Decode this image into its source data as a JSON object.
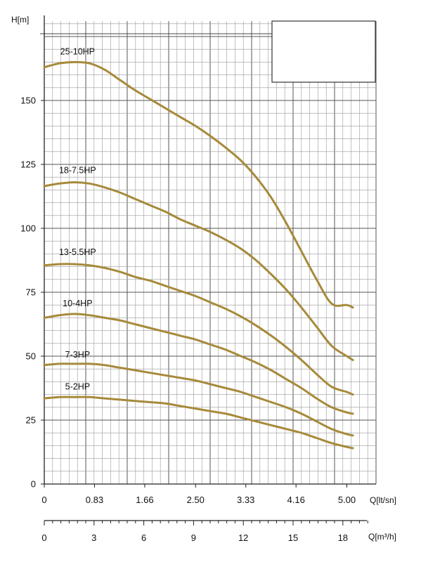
{
  "chart_data": {
    "type": "line",
    "title": "",
    "ylabel": "H[m]",
    "xlabel": "Q[lt/sn]",
    "xlabel2": "Q[m³/h]",
    "ylim": [
      0,
      180
    ],
    "xlim": [
      0,
      5.2
    ],
    "y_ticks": [
      "0",
      "25",
      "50",
      "75",
      "100",
      "125",
      "150"
    ],
    "x_ticks": [
      {
        "value": 0,
        "label": "0"
      },
      {
        "value": 0.83,
        "label": "0.83"
      },
      {
        "value": 1.66,
        "label": "1.66"
      },
      {
        "value": 2.5,
        "label": "2.50"
      },
      {
        "value": 3.33,
        "label": "3.33"
      },
      {
        "value": 4.16,
        "label": "4.16"
      },
      {
        "value": 5.0,
        "label": "5.00"
      }
    ],
    "x2_ticks": [
      "0",
      "3",
      "6",
      "9",
      "12",
      "15",
      "18"
    ],
    "grid": true,
    "series": [
      {
        "name": "25-10HP",
        "x": [
          0,
          0.25,
          0.5,
          0.75,
          1.0,
          1.25,
          1.5,
          1.75,
          2.0,
          2.25,
          2.5,
          2.75,
          3.0,
          3.25,
          3.5,
          3.75,
          4.0,
          4.25,
          4.5,
          4.75,
          5.0,
          5.1
        ],
        "y": [
          163,
          164.5,
          165,
          164.5,
          162,
          158,
          154,
          150.5,
          147,
          143.5,
          140,
          136,
          131.5,
          126.5,
          120,
          112,
          102,
          91,
          80,
          70.5,
          70,
          69
        ]
      },
      {
        "name": "18-7.5HP",
        "x": [
          0,
          0.25,
          0.5,
          0.75,
          1.0,
          1.25,
          1.5,
          1.75,
          2.0,
          2.25,
          2.5,
          2.75,
          3.0,
          3.25,
          3.5,
          3.75,
          4.0,
          4.25,
          4.5,
          4.75,
          5.0,
          5.1
        ],
        "y": [
          116.5,
          117.5,
          118,
          117.5,
          116,
          114,
          111.5,
          109,
          106.5,
          103.5,
          101,
          98.5,
          95.5,
          92,
          87.5,
          82,
          76,
          69,
          61.5,
          54,
          50,
          48.5
        ]
      },
      {
        "name": "13-5.5HP",
        "x": [
          0,
          0.25,
          0.5,
          0.75,
          1.0,
          1.25,
          1.5,
          1.75,
          2.0,
          2.25,
          2.5,
          2.75,
          3.0,
          3.25,
          3.5,
          3.75,
          4.0,
          4.25,
          4.5,
          4.75,
          5.0,
          5.1
        ],
        "y": [
          85.5,
          86,
          86,
          85.5,
          84.5,
          83,
          81,
          79.5,
          77.5,
          75.5,
          73.5,
          71,
          68.5,
          65.5,
          62,
          58,
          53.5,
          48.5,
          43,
          38,
          36,
          35
        ]
      },
      {
        "name": "10-4HP",
        "x": [
          0,
          0.25,
          0.5,
          0.75,
          1.0,
          1.25,
          1.5,
          1.75,
          2.0,
          2.25,
          2.5,
          2.75,
          3.0,
          3.25,
          3.5,
          3.75,
          4.0,
          4.25,
          4.5,
          4.75,
          5.0,
          5.1
        ],
        "y": [
          65,
          66,
          66.5,
          66,
          65,
          64,
          62.5,
          61,
          59.5,
          58,
          56.5,
          54.5,
          52.5,
          50,
          47.5,
          44.5,
          41,
          37.5,
          33.5,
          30,
          28,
          27.5
        ]
      },
      {
        "name": "7-3HP",
        "x": [
          0,
          0.25,
          0.5,
          0.75,
          1.0,
          1.25,
          1.5,
          1.75,
          2.0,
          2.25,
          2.5,
          2.75,
          3.0,
          3.25,
          3.5,
          3.75,
          4.0,
          4.25,
          4.5,
          4.75,
          5.0,
          5.1
        ],
        "y": [
          46.5,
          47,
          47,
          47,
          46.5,
          45.5,
          44.5,
          43.5,
          42.5,
          41.5,
          40.5,
          39,
          37.5,
          36,
          34,
          32,
          30,
          27.5,
          24.5,
          21.5,
          19.5,
          19
        ]
      },
      {
        "name": "5-2HP",
        "x": [
          0,
          0.25,
          0.5,
          0.75,
          1.0,
          1.25,
          1.5,
          1.75,
          2.0,
          2.25,
          2.5,
          2.75,
          3.0,
          3.25,
          3.5,
          3.75,
          4.0,
          4.25,
          4.5,
          4.75,
          5.0,
          5.1
        ],
        "y": [
          33.5,
          34,
          34,
          34,
          33.5,
          33,
          32.5,
          32,
          31.5,
          30.5,
          29.5,
          28.5,
          27.5,
          26,
          24.5,
          23,
          21.5,
          20,
          18,
          16,
          14.5,
          14
        ]
      }
    ],
    "label_positions": [
      {
        "x": 0.55,
        "y": 168
      },
      {
        "x": 0.55,
        "y": 121.5
      },
      {
        "x": 0.55,
        "y": 89.5
      },
      {
        "x": 0.55,
        "y": 69.5
      },
      {
        "x": 0.55,
        "y": 49.5
      },
      {
        "x": 0.55,
        "y": 37
      }
    ],
    "line_color": "#a68a3a",
    "grid_color": "#9a9a9a",
    "legend": "none"
  }
}
